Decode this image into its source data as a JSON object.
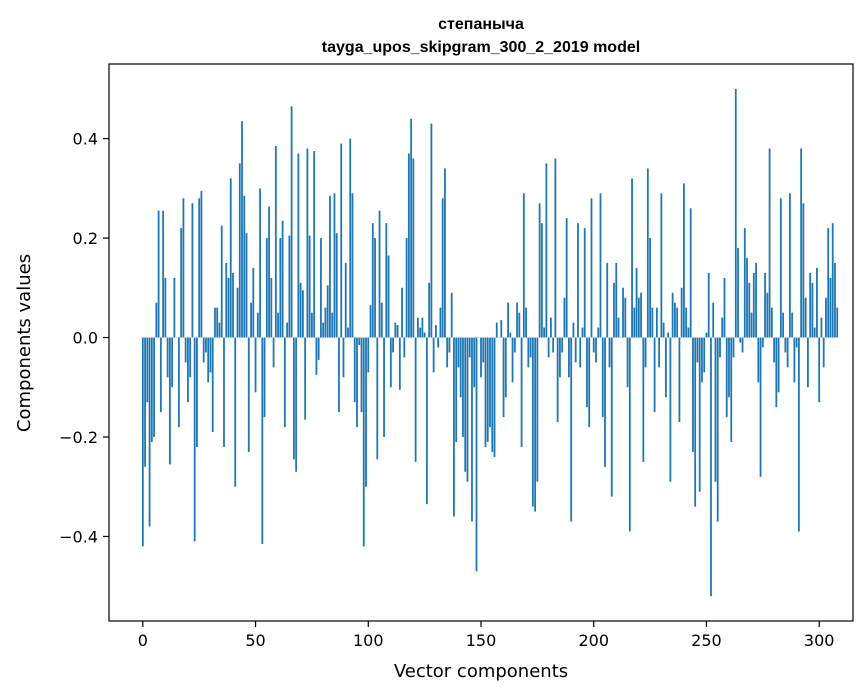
{
  "chart_data": {
    "type": "bar",
    "title_lines": [
      "степаныча",
      "tayga_upos_skipgram_300_2_2019 model"
    ],
    "xlabel": "Vector components",
    "ylabel": "Components values",
    "xlim": [
      -15,
      315
    ],
    "ylim": [
      -0.57,
      0.55
    ],
    "xticks": [
      0,
      50,
      100,
      150,
      200,
      250,
      300
    ],
    "xtick_labels": [
      "0",
      "50",
      "100",
      "150",
      "200",
      "250",
      "300"
    ],
    "yticks": [
      -0.4,
      -0.2,
      0.0,
      0.2,
      0.4
    ],
    "ytick_labels": [
      "−0.4",
      "−0.2",
      "0.0",
      "0.2",
      "0.4"
    ],
    "grid": false,
    "bar_color": "#1f77b4",
    "series": [
      {
        "name": "степаныча",
        "x_start": 0,
        "values": [
          -0.42,
          -0.26,
          -0.13,
          -0.38,
          -0.21,
          -0.2,
          0.07,
          0.255,
          -0.15,
          0.255,
          0.12,
          -0.08,
          -0.255,
          -0.1,
          0.12,
          0.0,
          -0.18,
          0.22,
          0.28,
          -0.05,
          -0.13,
          -0.08,
          0.27,
          -0.41,
          -0.22,
          0.28,
          0.295,
          -0.05,
          -0.03,
          -0.09,
          -0.07,
          -0.19,
          0.06,
          0.06,
          0.03,
          0.225,
          -0.22,
          0.15,
          0.12,
          0.32,
          0.13,
          -0.3,
          0.1,
          0.35,
          0.435,
          0.285,
          0.21,
          -0.23,
          0.07,
          0.14,
          -0.11,
          0.05,
          0.3,
          -0.415,
          -0.16,
          0.2,
          0.263,
          0.12,
          -0.06,
          0.385,
          0.05,
          0.2,
          0.235,
          -0.18,
          0.03,
          0.205,
          0.465,
          -0.245,
          -0.27,
          0.37,
          0.11,
          0.095,
          -0.165,
          0.38,
          0.205,
          0.05,
          0.375,
          -0.075,
          -0.045,
          0.2,
          0.03,
          0.06,
          0.105,
          0.285,
          0.05,
          0.29,
          0.21,
          -0.15,
          0.39,
          -0.08,
          0.15,
          0.02,
          0.4,
          0.29,
          -0.13,
          -0.18,
          -0.015,
          -0.15,
          -0.42,
          -0.3,
          -0.07,
          0.065,
          0.23,
          0.2,
          -0.245,
          0.255,
          0.07,
          -0.2,
          0.23,
          0.165,
          -0.1,
          -0.03,
          0.03,
          0.025,
          -0.105,
          0.1,
          -0.04,
          0.2,
          0.37,
          0.44,
          0.36,
          -0.25,
          0.04,
          0.02,
          0.04,
          0.01,
          -0.335,
          0.11,
          0.43,
          -0.07,
          0.025,
          -0.02,
          0.06,
          0.28,
          0.34,
          -0.06,
          -0.03,
          0.09,
          -0.36,
          -0.21,
          -0.06,
          -0.12,
          -0.2,
          -0.27,
          -0.29,
          -0.04,
          -0.37,
          -0.1,
          -0.47,
          0.0,
          -0.08,
          -0.05,
          -0.22,
          -0.21,
          -0.18,
          -0.23,
          -0.24,
          0.03,
          0.0,
          0.035,
          -0.16,
          -0.12,
          0.07,
          0.01,
          -0.09,
          -0.03,
          0.07,
          0.05,
          -0.22,
          0.29,
          0.06,
          -0.06,
          -0.04,
          -0.34,
          -0.35,
          -0.29,
          0.27,
          0.23,
          0.02,
          0.35,
          -0.04,
          0.04,
          -0.03,
          0.36,
          -0.17,
          -0.08,
          -0.03,
          0.08,
          0.24,
          -0.08,
          -0.37,
          0.03,
          -0.05,
          0.23,
          -0.06,
          0.02,
          0.22,
          -0.14,
          -0.18,
          0.28,
          -0.03,
          -0.05,
          0.02,
          0.29,
          -0.16,
          -0.26,
          0.15,
          -0.06,
          -0.32,
          0.11,
          0.15,
          0.04,
          0.0,
          0.1,
          0.08,
          -0.1,
          -0.39,
          0.32,
          0.06,
          0.14,
          0.08,
          0.09,
          -0.25,
          -0.06,
          0.34,
          0.2,
          0.06,
          -0.15,
          0.06,
          -0.06,
          0.29,
          0.03,
          -0.12,
          0.01,
          -0.29,
          0.09,
          0.07,
          0.06,
          -0.17,
          0.1,
          0.31,
          0.06,
          0.02,
          0.26,
          -0.23,
          -0.34,
          -0.05,
          -0.31,
          -0.09,
          -0.07,
          0.01,
          0.13,
          -0.52,
          0.07,
          -0.29,
          -0.37,
          -0.04,
          0.04,
          0.12,
          -0.16,
          -0.12,
          -0.21,
          -0.04,
          0.5,
          0.18,
          -0.01,
          -0.03,
          0.22,
          0.16,
          0.11,
          0.05,
          0.13,
          0.15,
          -0.09,
          -0.28,
          -0.02,
          0.13,
          0.09,
          0.38,
          0.06,
          -0.05,
          -0.14,
          -0.11,
          0.28,
          0.05,
          -0.03,
          -0.06,
          0.29,
          0.05,
          -0.09,
          -0.02,
          -0.39,
          0.38,
          0.27,
          0.08,
          -0.1,
          0.13,
          0.11,
          0.02,
          0.14,
          -0.13,
          0.04,
          -0.06,
          0.08,
          0.22,
          0.12,
          0.23,
          0.15,
          0.06
        ]
      }
    ]
  }
}
